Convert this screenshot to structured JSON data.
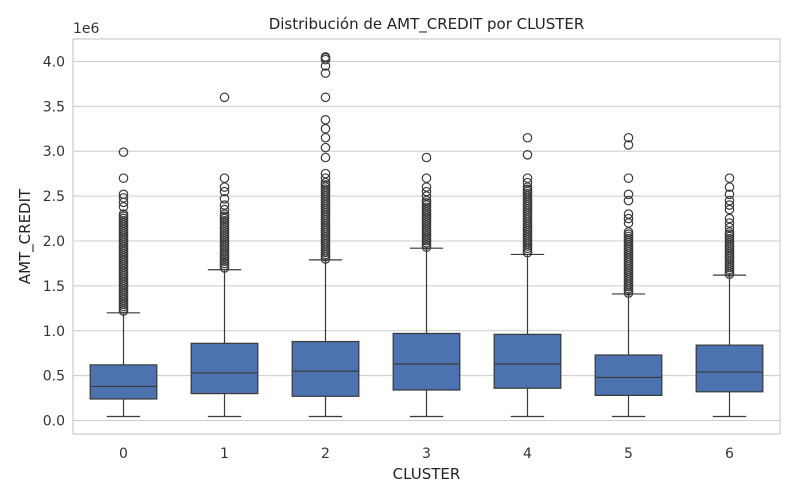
{
  "chart_data": {
    "type": "box",
    "title": "Distribución de AMT_CREDIT por CLUSTER",
    "xlabel": "CLUSTER",
    "ylabel": "AMT_CREDIT",
    "y_offset_label": "1e6",
    "ylim": [
      -0.15,
      4.25
    ],
    "y_ticks": [
      "0.0",
      "0.5",
      "1.0",
      "1.5",
      "2.0",
      "2.5",
      "3.0",
      "3.5",
      "4.0"
    ],
    "grid": true,
    "box_color": "#4c72b0",
    "categories": [
      "0",
      "1",
      "2",
      "3",
      "4",
      "5",
      "6"
    ],
    "boxes": [
      {
        "category": "0",
        "whisker_low": 0.045,
        "q1": 0.24,
        "median": 0.38,
        "q3": 0.62,
        "whisker_high": 1.2,
        "outliers_dense_range": [
          1.22,
          2.3
        ],
        "outliers": [
          2.38,
          2.43,
          2.48,
          2.52,
          2.7,
          2.99
        ]
      },
      {
        "category": "1",
        "whisker_low": 0.045,
        "q1": 0.3,
        "median": 0.53,
        "q3": 0.86,
        "whisker_high": 1.68,
        "outliers_dense_range": [
          1.7,
          2.3
        ],
        "outliers": [
          2.35,
          2.4,
          2.47,
          2.55,
          2.6,
          2.7,
          3.6
        ]
      },
      {
        "category": "2",
        "whisker_low": 0.045,
        "q1": 0.27,
        "median": 0.55,
        "q3": 0.88,
        "whisker_high": 1.79,
        "outliers_dense_range": [
          1.8,
          2.65
        ],
        "outliers": [
          2.7,
          2.75,
          2.93,
          3.04,
          3.15,
          3.25,
          3.35,
          3.6,
          3.87,
          3.95,
          4.02,
          4.04,
          4.05
        ]
      },
      {
        "category": "3",
        "whisker_low": 0.045,
        "q1": 0.34,
        "median": 0.63,
        "q3": 0.97,
        "whisker_high": 1.92,
        "outliers_dense_range": [
          1.93,
          2.45
        ],
        "outliers": [
          2.5,
          2.55,
          2.6,
          2.7,
          2.93
        ]
      },
      {
        "category": "4",
        "whisker_low": 0.045,
        "q1": 0.36,
        "median": 0.63,
        "q3": 0.96,
        "whisker_high": 1.85,
        "outliers_dense_range": [
          1.87,
          2.6
        ],
        "outliers": [
          2.65,
          2.7,
          2.96,
          3.15
        ]
      },
      {
        "category": "5",
        "whisker_low": 0.045,
        "q1": 0.28,
        "median": 0.48,
        "q3": 0.73,
        "whisker_high": 1.41,
        "outliers_dense_range": [
          1.42,
          2.1
        ],
        "outliers": [
          2.2,
          2.25,
          2.3,
          2.45,
          2.52,
          2.7,
          3.07,
          3.15
        ]
      },
      {
        "category": "6",
        "whisker_low": 0.045,
        "q1": 0.32,
        "median": 0.54,
        "q3": 0.84,
        "whisker_high": 1.62,
        "outliers_dense_range": [
          1.63,
          2.1
        ],
        "outliers": [
          2.15,
          2.2,
          2.25,
          2.35,
          2.4,
          2.45,
          2.52,
          2.6,
          2.7
        ]
      }
    ]
  }
}
